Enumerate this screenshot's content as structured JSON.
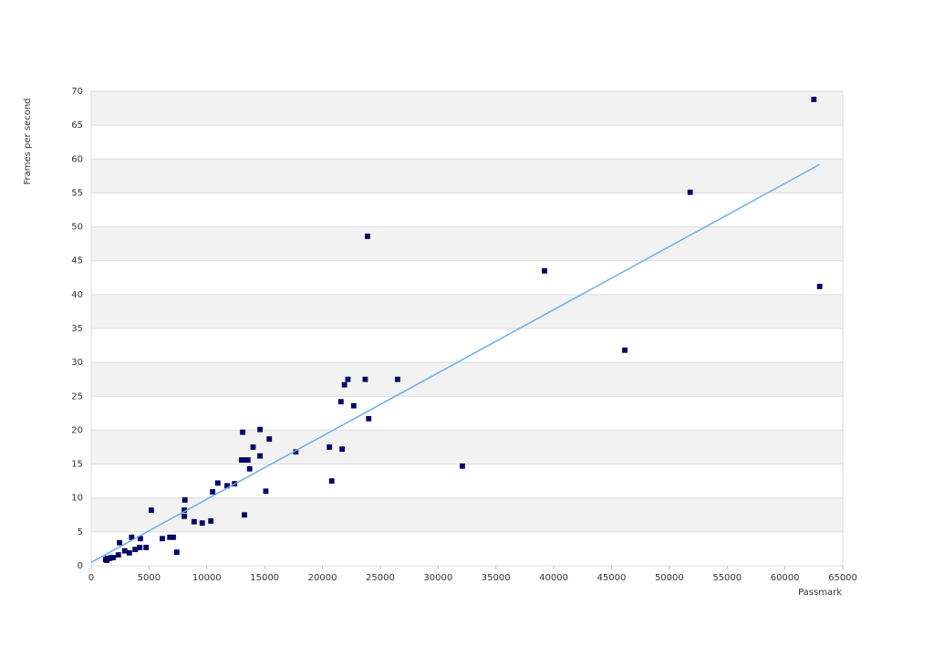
{
  "chart_data": {
    "type": "scatter",
    "x_label": "Passmark",
    "y_label": "Frames per second",
    "xlim": [
      0,
      65000
    ],
    "ylim": [
      0,
      70
    ],
    "xticks": [
      0,
      5000,
      10000,
      15000,
      20000,
      25000,
      30000,
      35000,
      40000,
      45000,
      50000,
      55000,
      60000,
      65000
    ],
    "yticks": [
      0,
      5,
      10,
      15,
      20,
      25,
      30,
      35,
      40,
      45,
      50,
      55,
      60,
      65,
      70
    ],
    "grid": true,
    "banded": true,
    "series": [
      {
        "color": "#000080",
        "x": [
          62500,
          63000,
          51800,
          46150,
          39200,
          32100,
          23900,
          26500,
          23700,
          22200,
          21900,
          21600,
          22700,
          24000,
          21700,
          20600,
          20800,
          17700,
          15400,
          14600,
          13100,
          14000,
          14600,
          13000,
          13250,
          13550,
          13700,
          15100,
          13250,
          12400,
          11750,
          10950,
          10500,
          10350,
          9600,
          8900,
          8100,
          8050,
          8050,
          7400,
          7100,
          6800,
          6150,
          5200,
          4750,
          4250,
          4200,
          3800,
          3500,
          3300,
          2900,
          2450,
          2350,
          1250,
          1400,
          1600,
          1750,
          1900,
          1350
        ],
        "y": [
          68.8,
          41.2,
          55.1,
          31.8,
          43.5,
          14.7,
          48.6,
          27.5,
          27.5,
          27.5,
          26.7,
          24.2,
          23.6,
          21.7,
          17.2,
          17.5,
          12.5,
          16.8,
          18.7,
          20.1,
          19.7,
          17.5,
          16.2,
          15.6,
          15.6,
          15.6,
          14.3,
          11.0,
          7.5,
          12.1,
          11.8,
          12.2,
          10.9,
          6.6,
          6.3,
          6.5,
          9.7,
          8.2,
          7.3,
          2.0,
          4.2,
          4.2,
          4.0,
          8.2,
          2.7,
          4.0,
          2.7,
          2.4,
          4.2,
          1.9,
          2.2,
          3.4,
          1.6,
          0.9,
          1.1,
          1.1,
          1.2,
          1.2,
          0.8
        ]
      }
    ],
    "trendline": {
      "color": "#6aaee8",
      "x": [
        0,
        63000
      ],
      "y": [
        0.5,
        59.2
      ]
    }
  }
}
